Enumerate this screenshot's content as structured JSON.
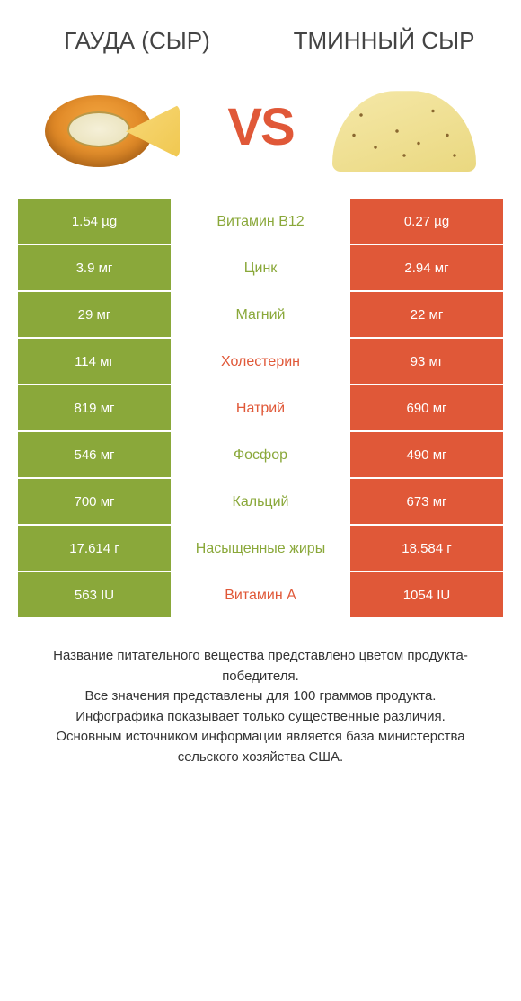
{
  "titles": {
    "left": "ГАУДА (СЫР)",
    "right": "ТМИННЫЙ СЫР"
  },
  "vs_label": "VS",
  "colors": {
    "left_bg": "#8aa83a",
    "right_bg": "#e05838",
    "mid_left_text": "#8aa83a",
    "mid_right_text": "#e05838",
    "cell_text": "#ffffff",
    "vs_color": "#e05838"
  },
  "rows": [
    {
      "left": "1.54 µg",
      "label": "Витамин B12",
      "right": "0.27 µg",
      "winner": "left"
    },
    {
      "left": "3.9 мг",
      "label": "Цинк",
      "right": "2.94 мг",
      "winner": "left"
    },
    {
      "left": "29 мг",
      "label": "Магний",
      "right": "22 мг",
      "winner": "left"
    },
    {
      "left": "114 мг",
      "label": "Холестерин",
      "right": "93 мг",
      "winner": "right"
    },
    {
      "left": "819 мг",
      "label": "Натрий",
      "right": "690 мг",
      "winner": "right"
    },
    {
      "left": "546 мг",
      "label": "Фосфор",
      "right": "490 мг",
      "winner": "left"
    },
    {
      "left": "700 мг",
      "label": "Кальций",
      "right": "673 мг",
      "winner": "left"
    },
    {
      "left": "17.614 г",
      "label": "Насыщенные жиры",
      "right": "18.584 г",
      "winner": "left"
    },
    {
      "left": "563 IU",
      "label": "Витамин A",
      "right": "1054 IU",
      "winner": "right"
    }
  ],
  "footer_lines": [
    "Название питательного вещества представлено цветом продукта-победителя.",
    "Все значения представлены для 100 граммов продукта.",
    "Инфографика показывает только существенные различия.",
    "Основным источником информации является база министерства сельского хозяйства США."
  ]
}
